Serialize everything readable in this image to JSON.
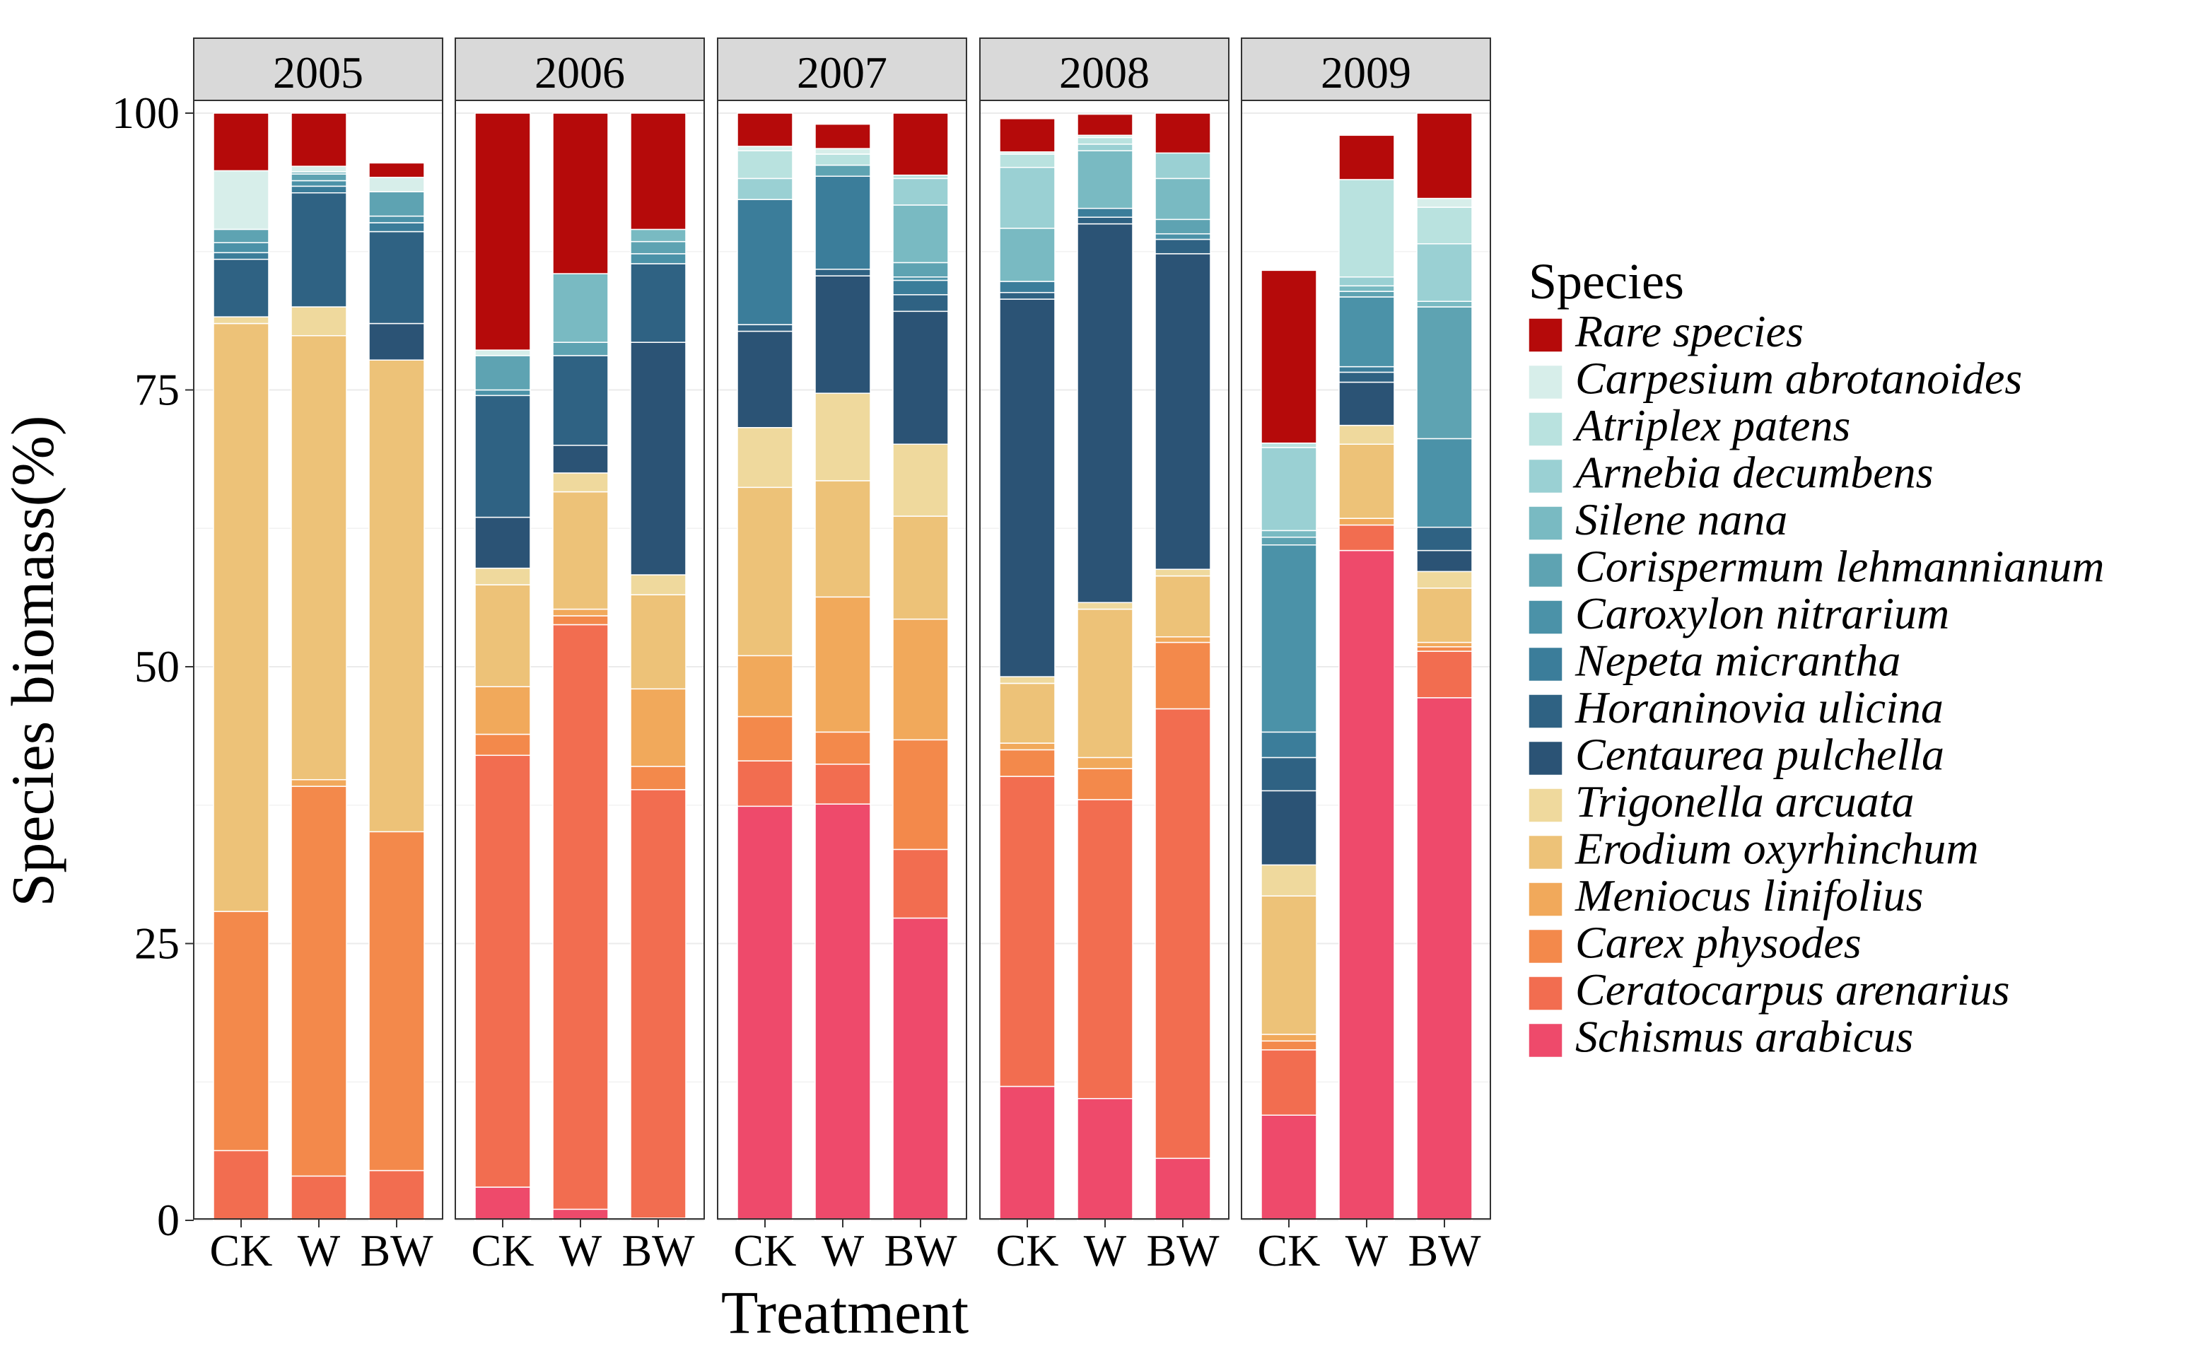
{
  "chart_data": {
    "type": "bar",
    "stacked": true,
    "faceted_by": "year",
    "xlabel": "Treatment",
    "ylabel": "Species biomass(%)",
    "ylim": [
      0,
      100
    ],
    "yticks": [
      0,
      25,
      50,
      75,
      100
    ],
    "grid": true,
    "legend_title": "Species",
    "legend_position": "right",
    "categories": [
      "CK",
      "W",
      "BW"
    ],
    "species": [
      {
        "name": "Schismus arabicus",
        "color": "#EE4A6B"
      },
      {
        "name": "Ceratocarpus arenarius",
        "color": "#F26D50"
      },
      {
        "name": "Carex physodes",
        "color": "#F3894B"
      },
      {
        "name": "Meniocus linifolius",
        "color": "#F1A95B"
      },
      {
        "name": "Erodium oxyrhinchum",
        "color": "#EDC278"
      },
      {
        "name": "Trigonella arcuata",
        "color": "#EFD99D"
      },
      {
        "name": "Centaurea pulchella",
        "color": "#2B5375"
      },
      {
        "name": "Horaninovia ulicina",
        "color": "#2F6283"
      },
      {
        "name": "Nepeta micrantha",
        "color": "#3B7D9A"
      },
      {
        "name": "Caroxylon nitrarium",
        "color": "#4B92A8"
      },
      {
        "name": "Corispermum lehmannianum",
        "color": "#5EA3B2"
      },
      {
        "name": "Silene nana",
        "color": "#79BAC2"
      },
      {
        "name": "Arnebia decumbens",
        "color": "#9AD0D3"
      },
      {
        "name": "Atriplex patens",
        "color": "#B9E2DF"
      },
      {
        "name": "Carpesium abrotanoides",
        "color": "#D7EEEA"
      },
      {
        "name": "Rare species",
        "color": "#B50A0A"
      }
    ],
    "panels": [
      {
        "year": "2005",
        "bars": [
          {
            "treatment": "CK",
            "values": [
              0,
              6.3,
              21.6,
              0,
              53.1,
              0.6,
              0,
              5.2,
              0.6,
              0.9,
              1.2,
              0,
              0,
              0,
              5.3,
              5.2
            ]
          },
          {
            "treatment": "W",
            "values": [
              0,
              4.0,
              35.2,
              0.6,
              40.1,
              2.6,
              0,
              10.3,
              0.6,
              0.5,
              0.6,
              0.2,
              0,
              0,
              0.5,
              4.8
            ]
          },
          {
            "treatment": "BW",
            "values": [
              0,
              4.5,
              30.6,
              0,
              42.6,
              0,
              3.3,
              8.3,
              0.8,
              0.6,
              2.2,
              0,
              0,
              0,
              1.3,
              1.3
            ]
          }
        ]
      },
      {
        "year": "2006",
        "bars": [
          {
            "treatment": "CK",
            "values": [
              3.0,
              39.0,
              1.9,
              4.3,
              9.2,
              1.5,
              4.6,
              11.0,
              0,
              0.5,
              3.1,
              0,
              0,
              0,
              0.5,
              21.4
            ]
          },
          {
            "treatment": "W",
            "values": [
              1.0,
              52.8,
              0.8,
              0.6,
              10.6,
              1.7,
              2.5,
              8.1,
              0,
              0,
              1.2,
              6.2,
              0,
              0,
              0,
              14.5
            ]
          },
          {
            "treatment": "BW",
            "values": [
              0.2,
              38.7,
              2.1,
              7.0,
              8.5,
              1.8,
              21.0,
              7.1,
              0,
              0.9,
              1.1,
              1.1,
              0,
              0,
              0,
              10.5
            ]
          }
        ]
      },
      {
        "year": "2007",
        "bars": [
          {
            "treatment": "CK",
            "values": [
              37.4,
              4.1,
              4.0,
              5.5,
              15.2,
              5.4,
              8.7,
              0.6,
              11.3,
              0,
              0,
              0,
              1.9,
              2.5,
              0.4,
              3.0
            ]
          },
          {
            "treatment": "W",
            "values": [
              37.6,
              3.6,
              2.9,
              12.2,
              10.5,
              7.9,
              10.6,
              0.6,
              8.4,
              0,
              1.0,
              0,
              0,
              1.0,
              0.5,
              2.2
            ]
          },
          {
            "treatment": "BW",
            "values": [
              27.3,
              6.2,
              9.9,
              10.9,
              9.3,
              6.5,
              12.0,
              1.5,
              1.3,
              0.3,
              1.3,
              5.2,
              2.4,
              0.3,
              0,
              5.6
            ]
          }
        ]
      },
      {
        "year": "2008",
        "bars": [
          {
            "treatment": "CK",
            "values": [
              12.1,
              28.0,
              2.4,
              0.6,
              5.4,
              0.6,
              34.1,
              0.6,
              1.0,
              0,
              0,
              4.8,
              5.5,
              1.2,
              0.2,
              3.0
            ]
          },
          {
            "treatment": "W",
            "values": [
              11.0,
              27.0,
              2.8,
              1.0,
              13.4,
              0.6,
              34.2,
              0.6,
              0.8,
              0,
              0,
              5.2,
              0.6,
              0.6,
              0.2,
              1.9
            ]
          },
          {
            "treatment": "BW",
            "values": [
              5.6,
              40.6,
              6.0,
              0.5,
              5.5,
              0.6,
              28.5,
              1.3,
              0,
              0.5,
              1.3,
              3.7,
              2.3,
              0,
              0,
              3.6
            ]
          }
        ]
      },
      {
        "year": "2009",
        "bars": [
          {
            "treatment": "CK",
            "values": [
              9.5,
              5.9,
              0.8,
              0.6,
              12.5,
              2.8,
              6.7,
              3.0,
              2.3,
              16.9,
              0.7,
              0.6,
              7.5,
              0.4,
              0,
              15.6
            ]
          },
          {
            "treatment": "W",
            "values": [
              60.5,
              2.3,
              0,
              0.6,
              6.7,
              1.7,
              3.9,
              0.9,
              0.5,
              6.3,
              0.5,
              0.5,
              0.8,
              8.8,
              0,
              4.0
            ]
          },
          {
            "treatment": "BW",
            "values": [
              47.2,
              4.2,
              0.4,
              0.4,
              4.9,
              1.5,
              1.9,
              2.1,
              0,
              8.0,
              11.9,
              0.5,
              5.2,
              3.3,
              0.8,
              7.7
            ]
          }
        ]
      }
    ]
  }
}
